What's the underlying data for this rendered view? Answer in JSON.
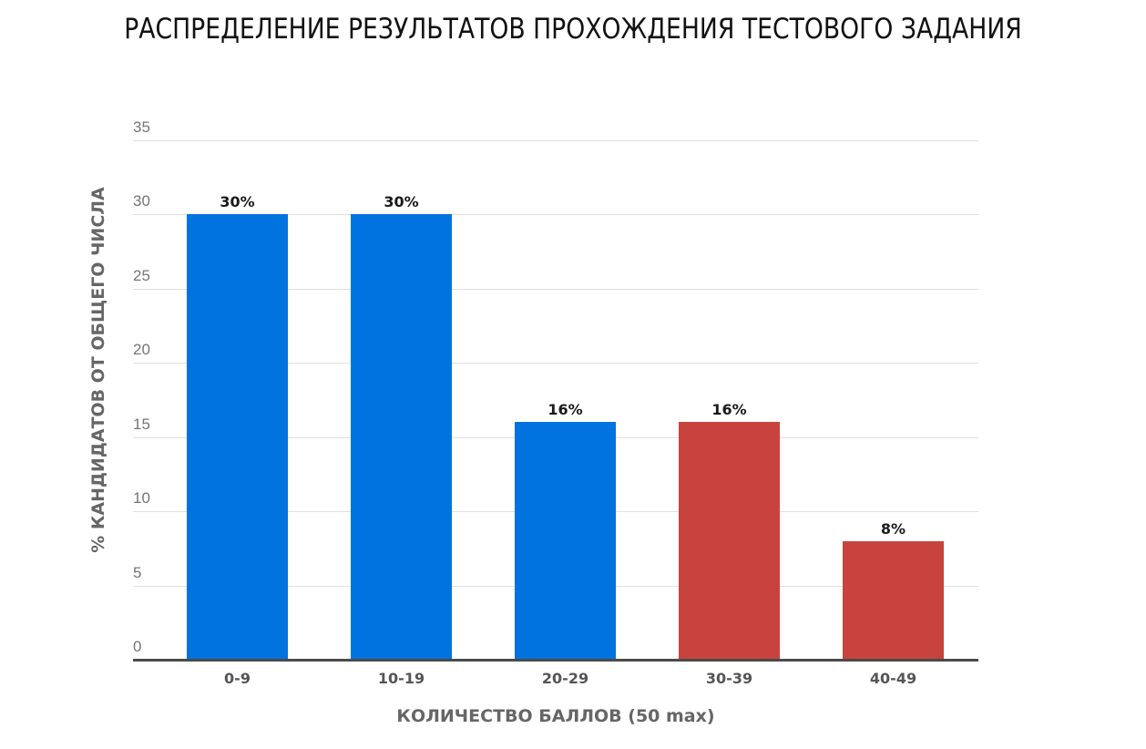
{
  "title": "РАСПРЕДЕЛЕНИЕ РЕЗУЛЬТАТОВ ПРОХОЖДЕНИЯ ТЕСТОВОГО ЗАДАНИЯ",
  "axes": {
    "xlabel": "КОЛИЧЕСТВО БАЛЛОВ (50 max)",
    "ylabel": "% КАНДИДАТОВ ОТ ОБЩЕГО ЧИСЛА",
    "yticks": [
      "0",
      "5",
      "10",
      "15",
      "20",
      "25",
      "30",
      "35"
    ]
  },
  "colors": {
    "blue": "#0073e0",
    "red": "#c8433d",
    "grid": "#e0e0e0",
    "axis": "#4a4a4a"
  },
  "bars": [
    {
      "category": "0-9",
      "value": 30,
      "label": "30%",
      "color": "#0073e0"
    },
    {
      "category": "10-19",
      "value": 30,
      "label": "30%",
      "color": "#0073e0"
    },
    {
      "category": "20-29",
      "value": 16,
      "label": "16%",
      "color": "#0073e0"
    },
    {
      "category": "30-39",
      "value": 16,
      "label": "16%",
      "color": "#c8433d"
    },
    {
      "category": "40-49",
      "value": 8,
      "label": "8%",
      "color": "#c8433d"
    }
  ],
  "chart_data": {
    "type": "bar",
    "title": "РАСПРЕДЕЛЕНИЕ РЕЗУЛЬТАТОВ ПРОХОЖДЕНИЯ ТЕСТОВОГО ЗАДАНИЯ",
    "categories": [
      "0-9",
      "10-19",
      "20-29",
      "30-39",
      "40-49"
    ],
    "values": [
      30,
      30,
      16,
      16,
      8
    ],
    "data_labels": [
      "30%",
      "30%",
      "16%",
      "16%",
      "8%"
    ],
    "bar_colors": [
      "#0073e0",
      "#0073e0",
      "#0073e0",
      "#c8433d",
      "#c8433d"
    ],
    "xlabel": "КОЛИЧЕСТВО БАЛЛОВ (50 max)",
    "ylabel": "% КАНДИДАТОВ ОТ ОБЩЕГО ЧИСЛА",
    "ylim": [
      0,
      35
    ],
    "yticks": [
      0,
      5,
      10,
      15,
      20,
      25,
      30,
      35
    ],
    "grid": true,
    "legend": "none"
  }
}
